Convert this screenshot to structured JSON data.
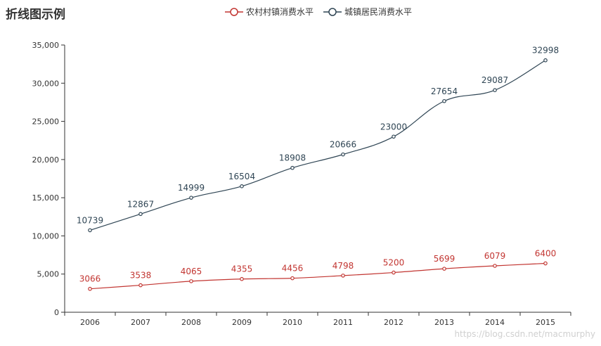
{
  "header": {
    "title": "折线图示例",
    "watermark": "https://blog.csdn.net/macmurphy"
  },
  "legend": [
    {
      "name": "农村村镇消费水平",
      "color": "#c23531"
    },
    {
      "name": "城镇居民消费水平",
      "color": "#2f4554"
    }
  ],
  "chart_data": {
    "type": "line",
    "title": "折线图示例",
    "categories": [
      "2006",
      "2007",
      "2008",
      "2009",
      "2010",
      "2011",
      "2012",
      "2013",
      "2014",
      "2015"
    ],
    "series": [
      {
        "name": "农村村镇消费水平",
        "color": "#c23531",
        "values": [
          3066,
          3538,
          4065,
          4355,
          4456,
          4798,
          5200,
          5699,
          6079,
          6400
        ]
      },
      {
        "name": "城镇居民消费水平",
        "color": "#2f4554",
        "values": [
          10739,
          12867,
          14999,
          16504,
          18908,
          20666,
          23000,
          27654,
          29087,
          32998
        ]
      }
    ],
    "ylim": [
      0,
      35000
    ],
    "yticks": [
      0,
      5000,
      10000,
      15000,
      20000,
      25000,
      30000,
      35000
    ],
    "smooth": true,
    "show_data_labels": true,
    "grid": false,
    "legend_position": "top"
  }
}
